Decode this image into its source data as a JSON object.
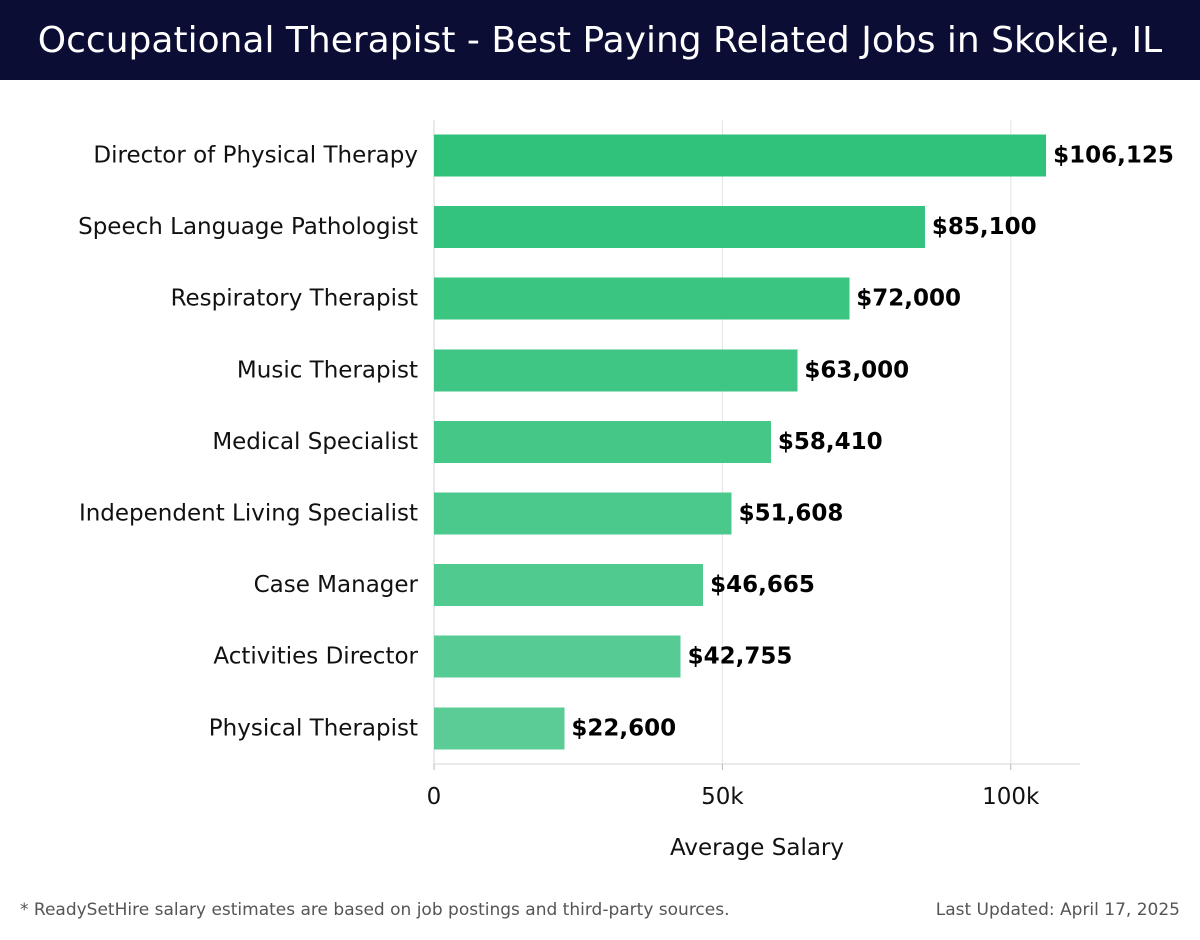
{
  "header": {
    "title": "Occupational Therapist - Best Paying Related Jobs in Skokie, IL"
  },
  "footer": {
    "note": "* ReadySetHire salary estimates are based on job postings and third-party sources.",
    "updated": "Last Updated: April 17, 2025"
  },
  "colors": {
    "header_bg": "#0b0d35",
    "bar_top": "#2ec27a",
    "bar_bottom": "#5ccc96",
    "grid": "#e3e3e3",
    "label": "#111111"
  },
  "chart_data": {
    "type": "bar",
    "orientation": "horizontal",
    "title": "",
    "xlabel": "Average Salary",
    "ylabel": "",
    "xlim": [
      0,
      112000
    ],
    "xticks": [
      0,
      50000,
      100000
    ],
    "xtick_labels": [
      "0",
      "50k",
      "100k"
    ],
    "grid": true,
    "categories": [
      "Director of Physical Therapy",
      "Speech Language Pathologist",
      "Respiratory Therapist",
      "Music Therapist",
      "Medical Specialist",
      "Independent Living Specialist",
      "Case Manager",
      "Activities Director",
      "Physical Therapist"
    ],
    "values": [
      106125,
      85100,
      72000,
      63000,
      58410,
      51608,
      46665,
      42755,
      22600
    ],
    "value_labels": [
      "$106,125",
      "$85,100",
      "$72,000",
      "$63,000",
      "$58,410",
      "$51,608",
      "$46,665",
      "$42,755",
      "$22,600"
    ]
  }
}
